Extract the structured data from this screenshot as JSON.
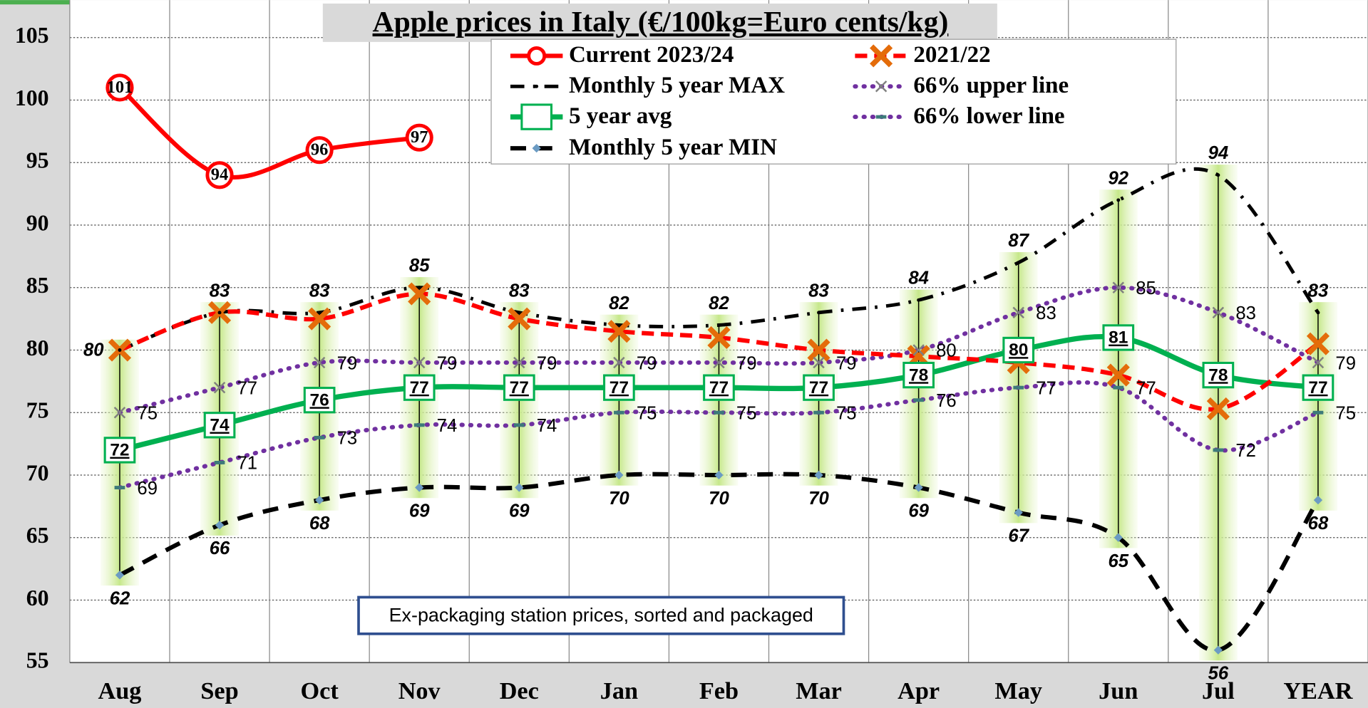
{
  "chart_data": {
    "type": "line",
    "title": "Apple prices in Italy (€/100kg=Euro cents/kg)",
    "annotation": "Ex-packaging station prices, sorted and packaged",
    "categories": [
      "Aug",
      "Sep",
      "Oct",
      "Nov",
      "Dec",
      "Jan",
      "Feb",
      "Mar",
      "Apr",
      "May",
      "Jun",
      "Jul",
      "YEAR"
    ],
    "ylim": [
      55,
      108
    ],
    "yticks": [
      55,
      60,
      65,
      70,
      75,
      80,
      85,
      90,
      95,
      100,
      105
    ],
    "grid": true,
    "series": [
      {
        "name": "Current 2023/24",
        "color": "#ff0000",
        "values": [
          101,
          94,
          96,
          97,
          null,
          null,
          null,
          null,
          null,
          null,
          null,
          null,
          null
        ]
      },
      {
        "name": "2021/22",
        "color": "#ff0000",
        "values": [
          80,
          83,
          82.5,
          84.5,
          82.5,
          81.5,
          81,
          80,
          79.5,
          79,
          78,
          75.3,
          80.5
        ]
      },
      {
        "name": "Monthly 5 year MAX",
        "color": "#000000",
        "values": [
          80,
          83,
          83,
          85,
          83,
          82,
          82,
          83,
          84,
          87,
          92,
          94,
          83
        ]
      },
      {
        "name": "66% upper line",
        "color": "#7030a0",
        "values": [
          75,
          77,
          79,
          79,
          79,
          79,
          79,
          79,
          80,
          83,
          85,
          83,
          79
        ]
      },
      {
        "name": "5 year avg",
        "color": "#00b050",
        "values": [
          72,
          74,
          76,
          77,
          77,
          77,
          77,
          77,
          78,
          80,
          81,
          78,
          77
        ]
      },
      {
        "name": "66% lower line",
        "color": "#7030a0",
        "values": [
          69,
          71,
          73,
          74,
          74,
          75,
          75,
          75,
          76,
          77,
          77,
          72,
          75
        ]
      },
      {
        "name": "Monthly 5 year MIN",
        "color": "#000000",
        "values": [
          62,
          66,
          68,
          69,
          69,
          70,
          70,
          70,
          69,
          67,
          65,
          56,
          68
        ]
      }
    ]
  }
}
